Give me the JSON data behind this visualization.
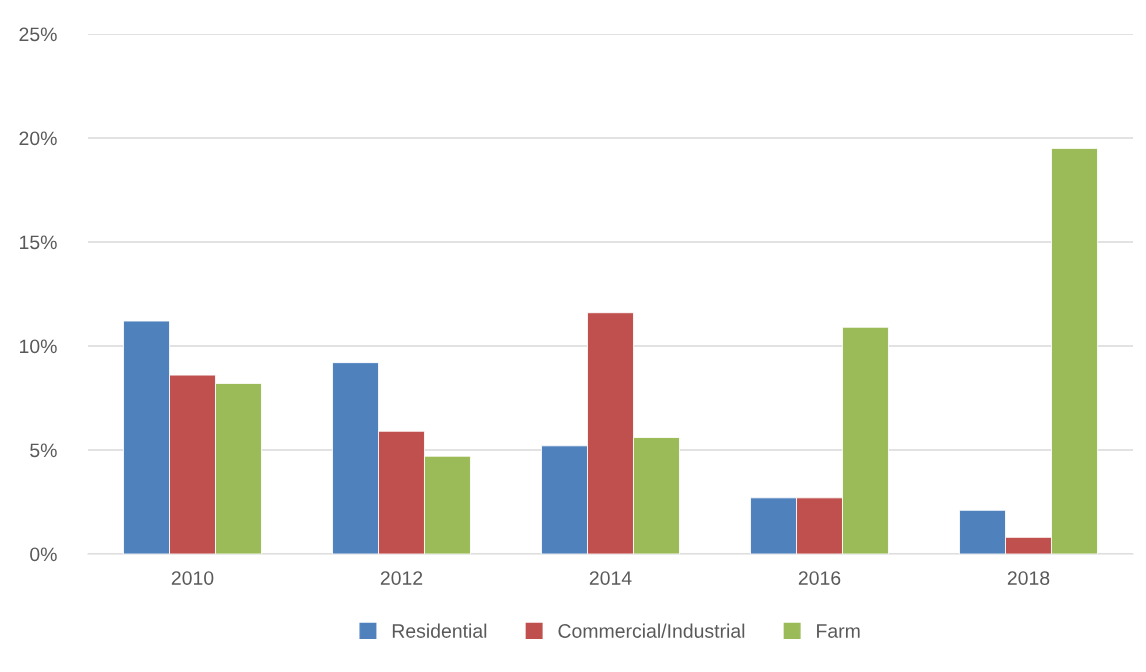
{
  "chart_data": {
    "type": "bar",
    "categories": [
      "2010",
      "2012",
      "2014",
      "2016",
      "2018"
    ],
    "series": [
      {
        "name": "Residential",
        "color": "#4f81bd",
        "values": [
          11.2,
          9.2,
          5.2,
          2.7,
          2.1
        ]
      },
      {
        "name": "Commercial/Industrial",
        "color": "#c0504d",
        "values": [
          8.6,
          5.9,
          11.6,
          2.7,
          0.8
        ]
      },
      {
        "name": "Farm",
        "color": "#9bbb59",
        "values": [
          8.2,
          4.7,
          5.6,
          10.9,
          19.5
        ]
      }
    ],
    "ylim": [
      0,
      25
    ],
    "yticks": [
      {
        "value": 0,
        "label": "0%"
      },
      {
        "value": 5,
        "label": "5%"
      },
      {
        "value": 10,
        "label": "10%"
      },
      {
        "value": 15,
        "label": "15%"
      },
      {
        "value": 20,
        "label": "20%"
      },
      {
        "value": 25,
        "label": "25%"
      }
    ],
    "grid": "y",
    "legend": "bottom"
  }
}
